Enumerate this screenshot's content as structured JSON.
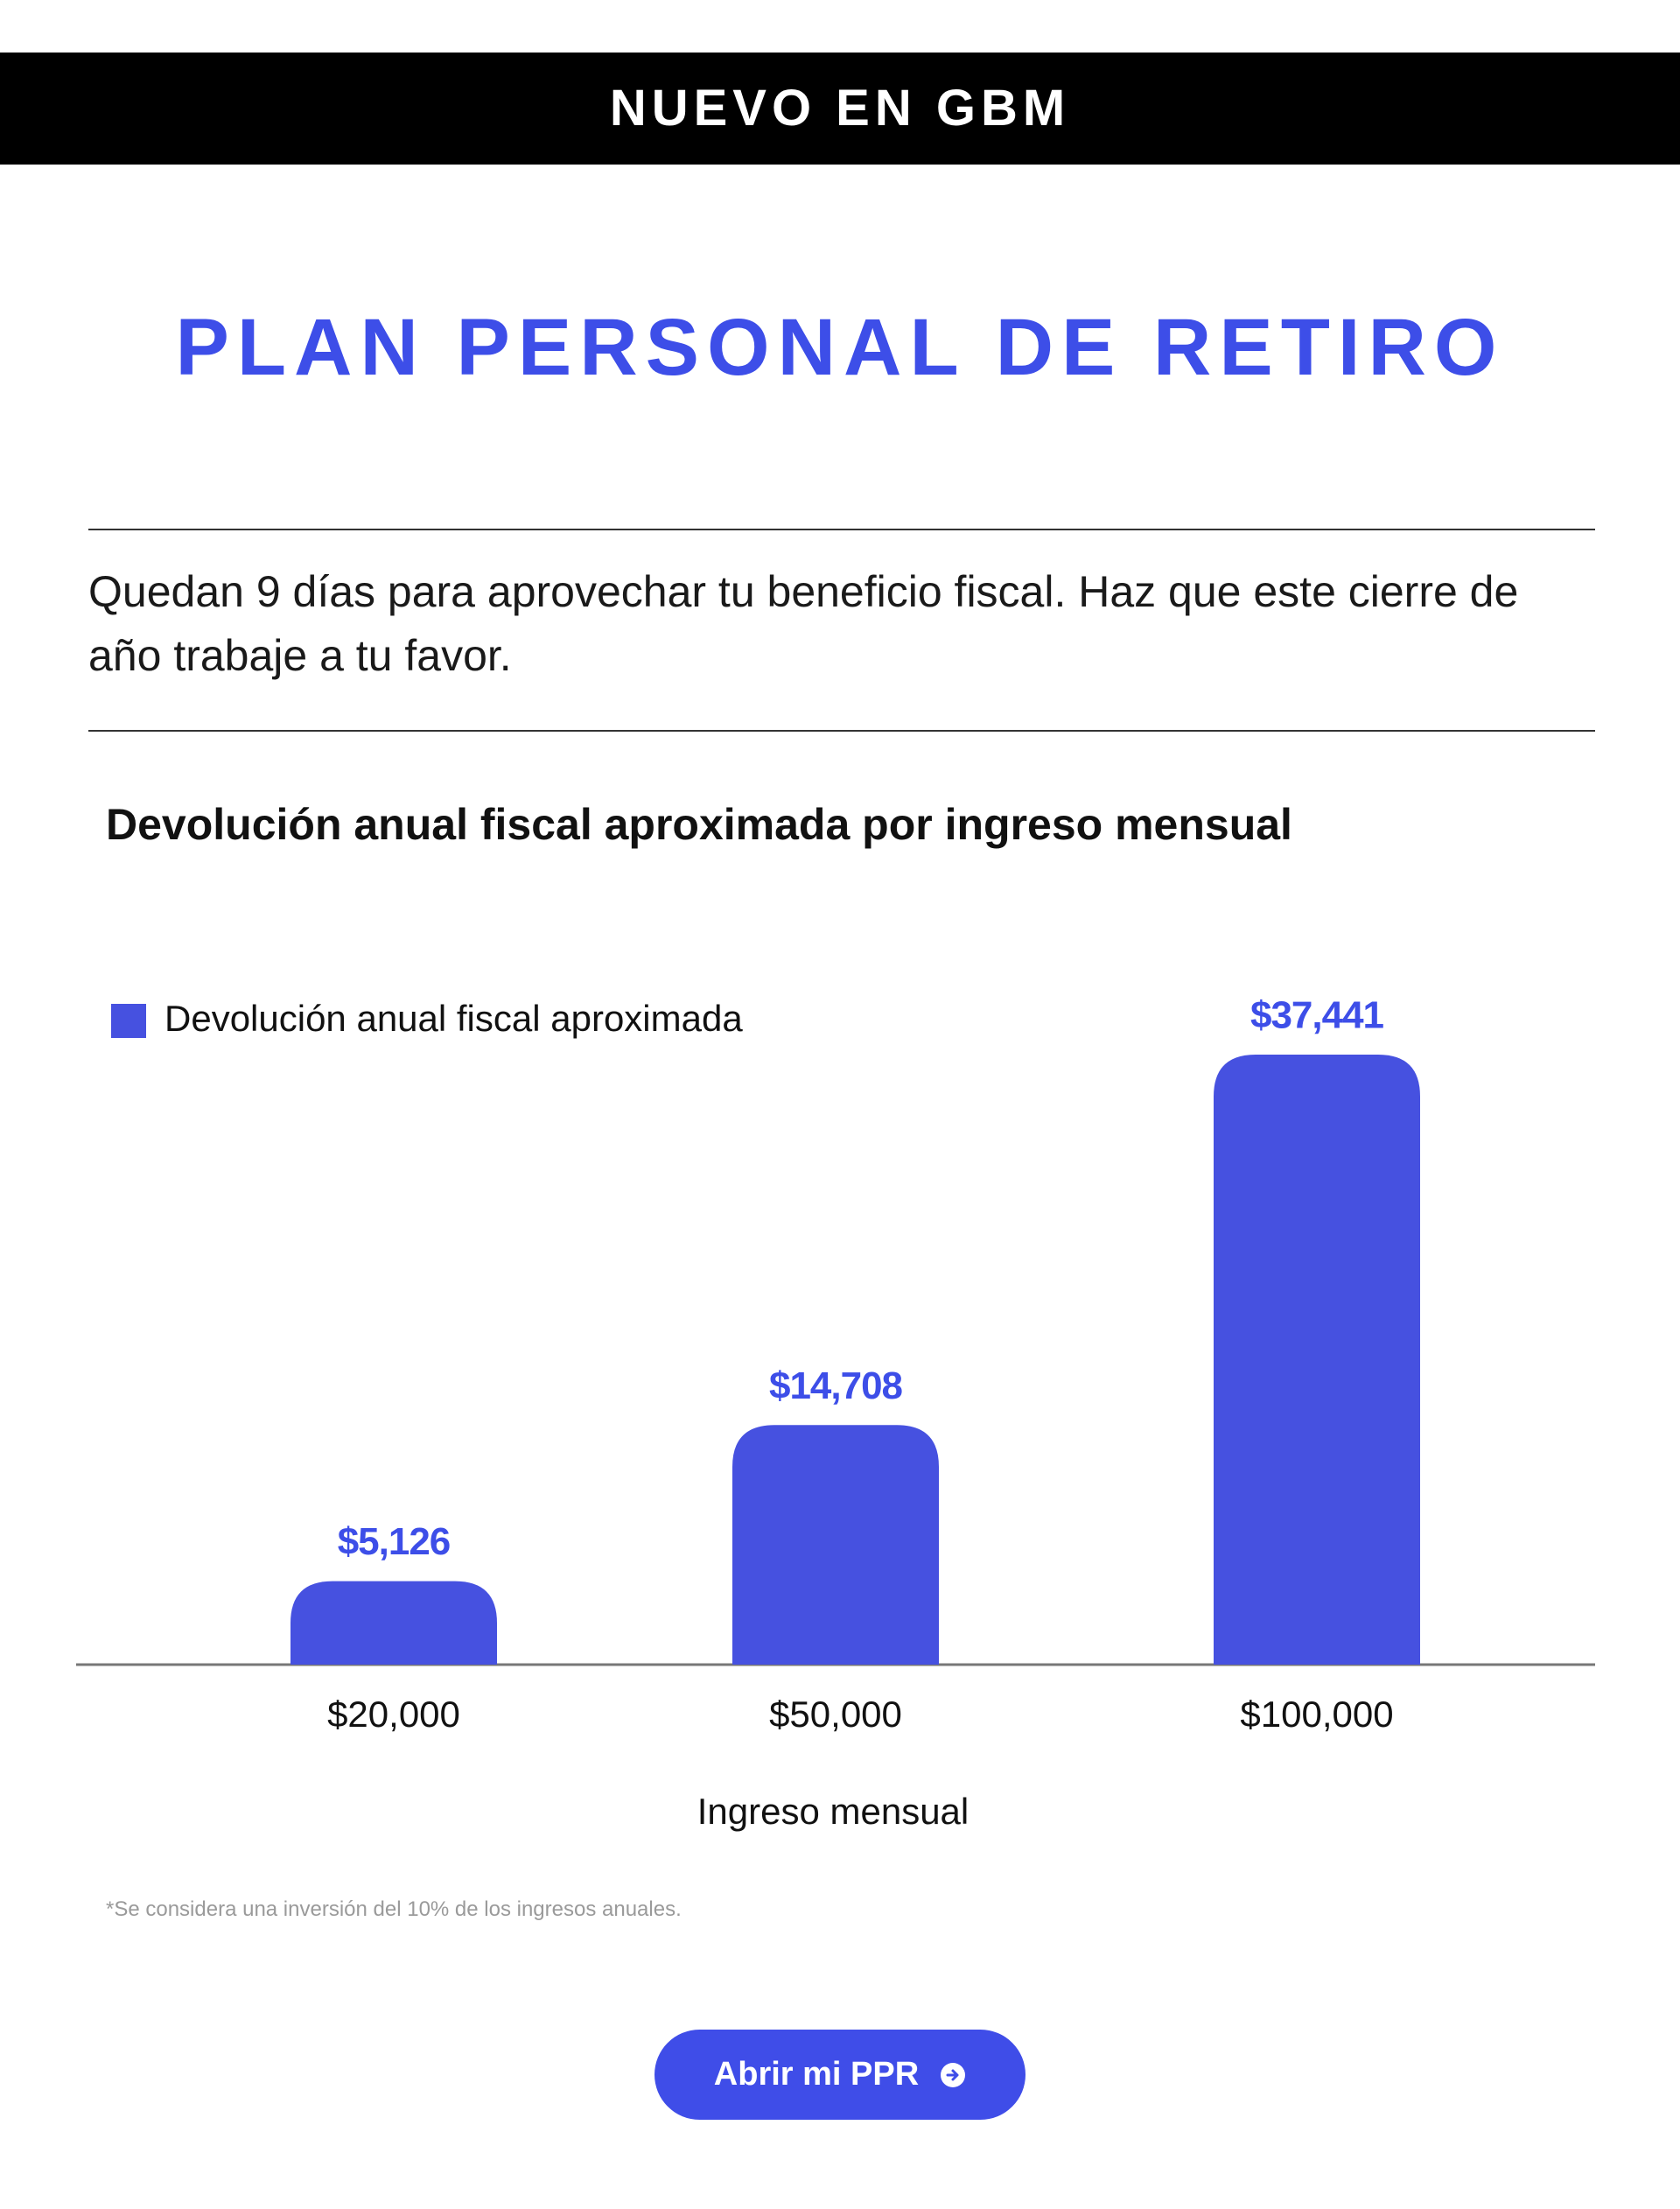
{
  "header": {
    "banner": "NUEVO EN GBM",
    "title": "PLAN PERSONAL DE RETIRO",
    "intro": "Quedan 9 días para aprovechar tu beneficio fiscal. Haz que este cierre de año trabaje a tu favor."
  },
  "chart_data": {
    "type": "bar",
    "title": "Devolución anual fiscal aproximada por ingreso mensual",
    "categories": [
      "$20,000",
      "$50,000",
      "$100,000"
    ],
    "series": [
      {
        "name": "Devolución anual fiscal aproximada",
        "color": "#4651e0",
        "values": [
          5126,
          14708,
          37441
        ],
        "value_labels": [
          "$5,126",
          "$14,708",
          "$37,441"
        ]
      }
    ],
    "x_label": "Ingreso mensual",
    "legend": "top-left"
  },
  "footnote": "*Se considera una inversión del 10% de los ingresos anuales.",
  "button": {
    "label": "Abrir mi PPR"
  }
}
